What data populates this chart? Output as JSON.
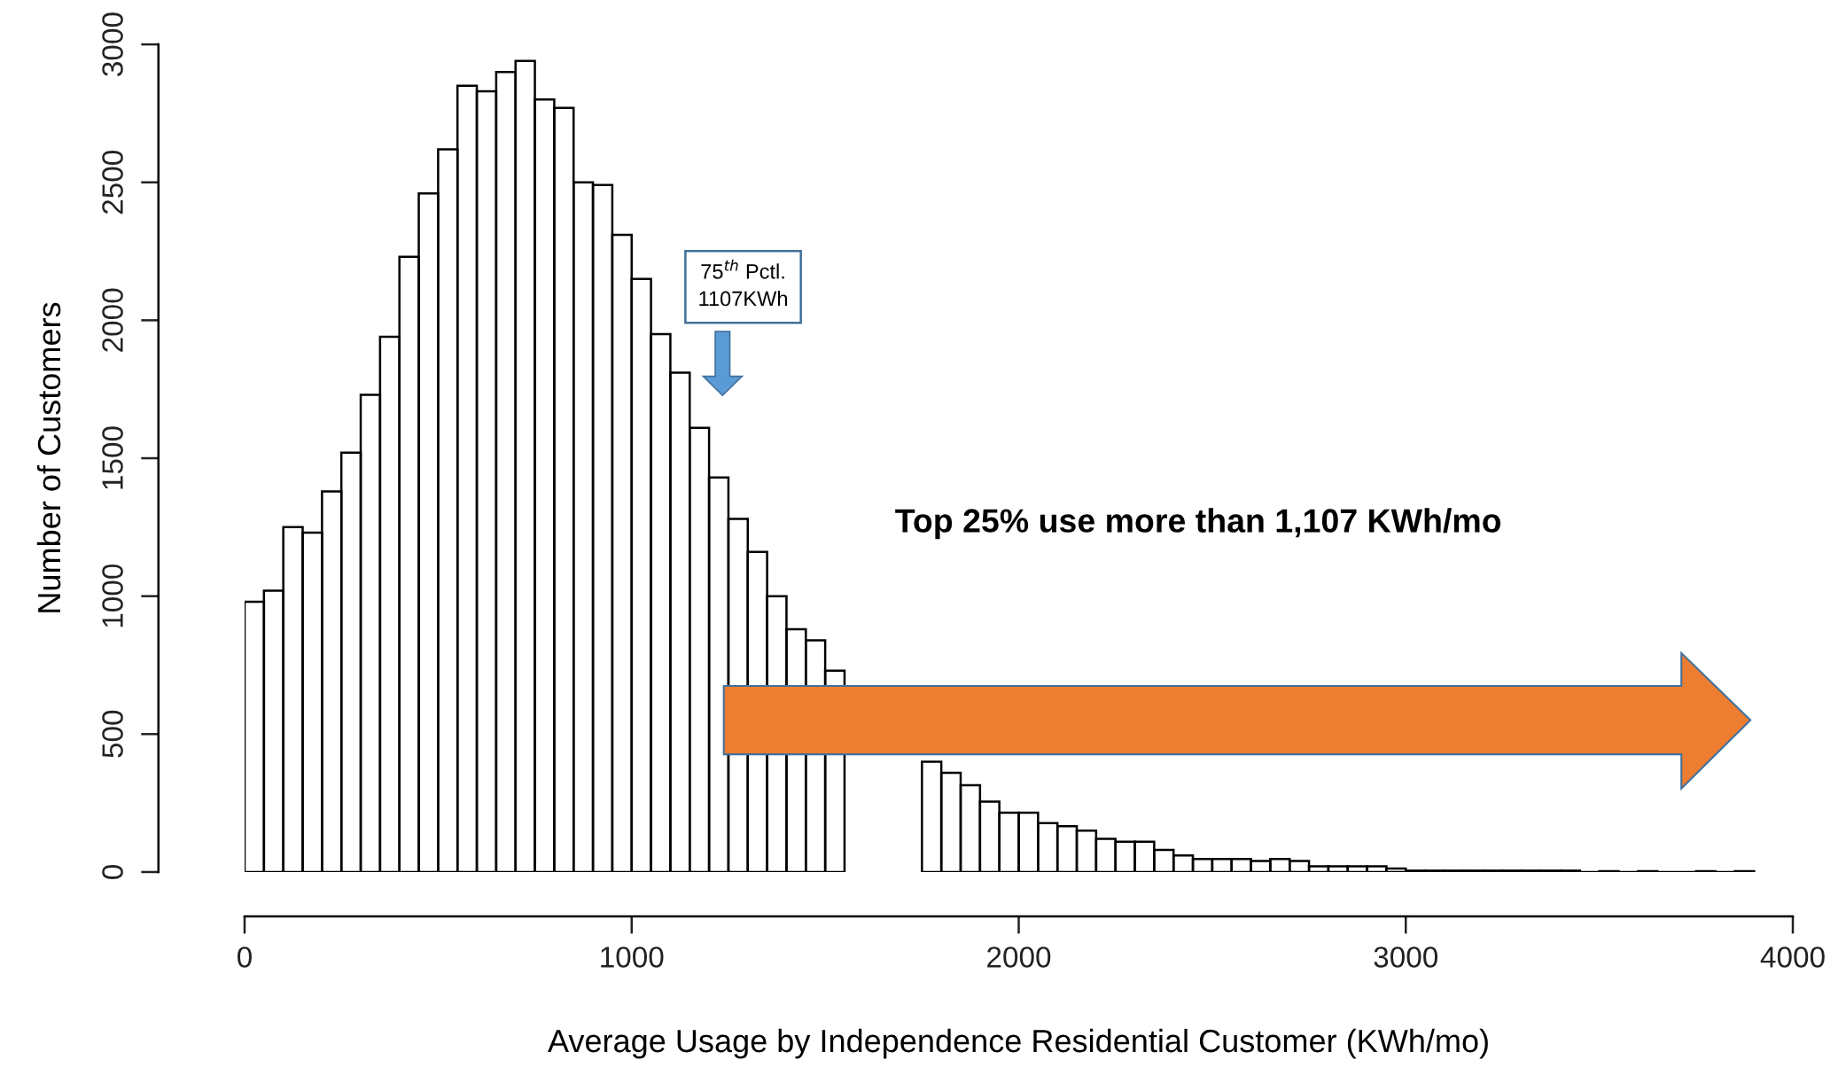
{
  "chart_data": {
    "type": "histogram",
    "xlabel": "Average Usage by Independence Residential Customer (KWh/mo)",
    "ylabel": "Number of Customers",
    "annotations": [
      "75$^{th}$ Pctl.\n1107KWh",
      "Top 25% use more than 1,107 KWh/mo"
    ],
    "bins": [
      0,
      50,
      100,
      150,
      200,
      250,
      300,
      350,
      400,
      450,
      500,
      550,
      600,
      650,
      700,
      750,
      800,
      850,
      900,
      950,
      1000,
      1050,
      1100,
      1150,
      1200,
      1250,
      1300,
      1350,
      1400,
      1450,
      1500,
      1550,
      1600,
      1650,
      1700,
      1750,
      1800,
      1850,
      1900,
      1950,
      2000,
      2050,
      2100,
      2150,
      2200,
      2250,
      2300,
      2350,
      2400,
      2450,
      2500,
      2550,
      2600,
      2650,
      2700,
      2750,
      2800,
      2850,
      2900,
      2950,
      3000,
      3050,
      3100,
      3150,
      3200,
      3250,
      3300,
      3350,
      3400,
      3450,
      3500,
      3550,
      3600,
      3650,
      3700,
      3750,
      3800,
      3850,
      3900
    ],
    "values": [
      980,
      1020,
      1250,
      1230,
      1380,
      1520,
      1730,
      1940,
      2230,
      2460,
      2620,
      2850,
      2830,
      2900,
      2940,
      2800,
      2770,
      2500,
      2490,
      2310,
      2150,
      1950,
      1810,
      1610,
      1430,
      1280,
      1160,
      1000,
      880,
      840,
      730,
      null,
      null,
      null,
      null,
      400,
      360,
      315,
      255,
      215,
      215,
      177,
      166,
      150,
      120,
      110,
      110,
      80,
      60,
      47,
      47,
      47,
      40,
      47,
      40,
      21,
      21,
      21,
      21,
      13,
      5,
      5,
      5,
      5,
      5,
      5,
      5,
      5,
      5,
      0,
      3,
      0,
      3,
      0,
      0,
      3,
      0,
      3
    ],
    "xlim": [
      0,
      4000
    ],
    "xticks": [
      0,
      1000,
      2000,
      3000,
      4000
    ],
    "ylim": [
      0,
      3000
    ],
    "yticks": [
      0,
      500,
      1000,
      1500,
      2000,
      2500,
      3000
    ]
  }
}
